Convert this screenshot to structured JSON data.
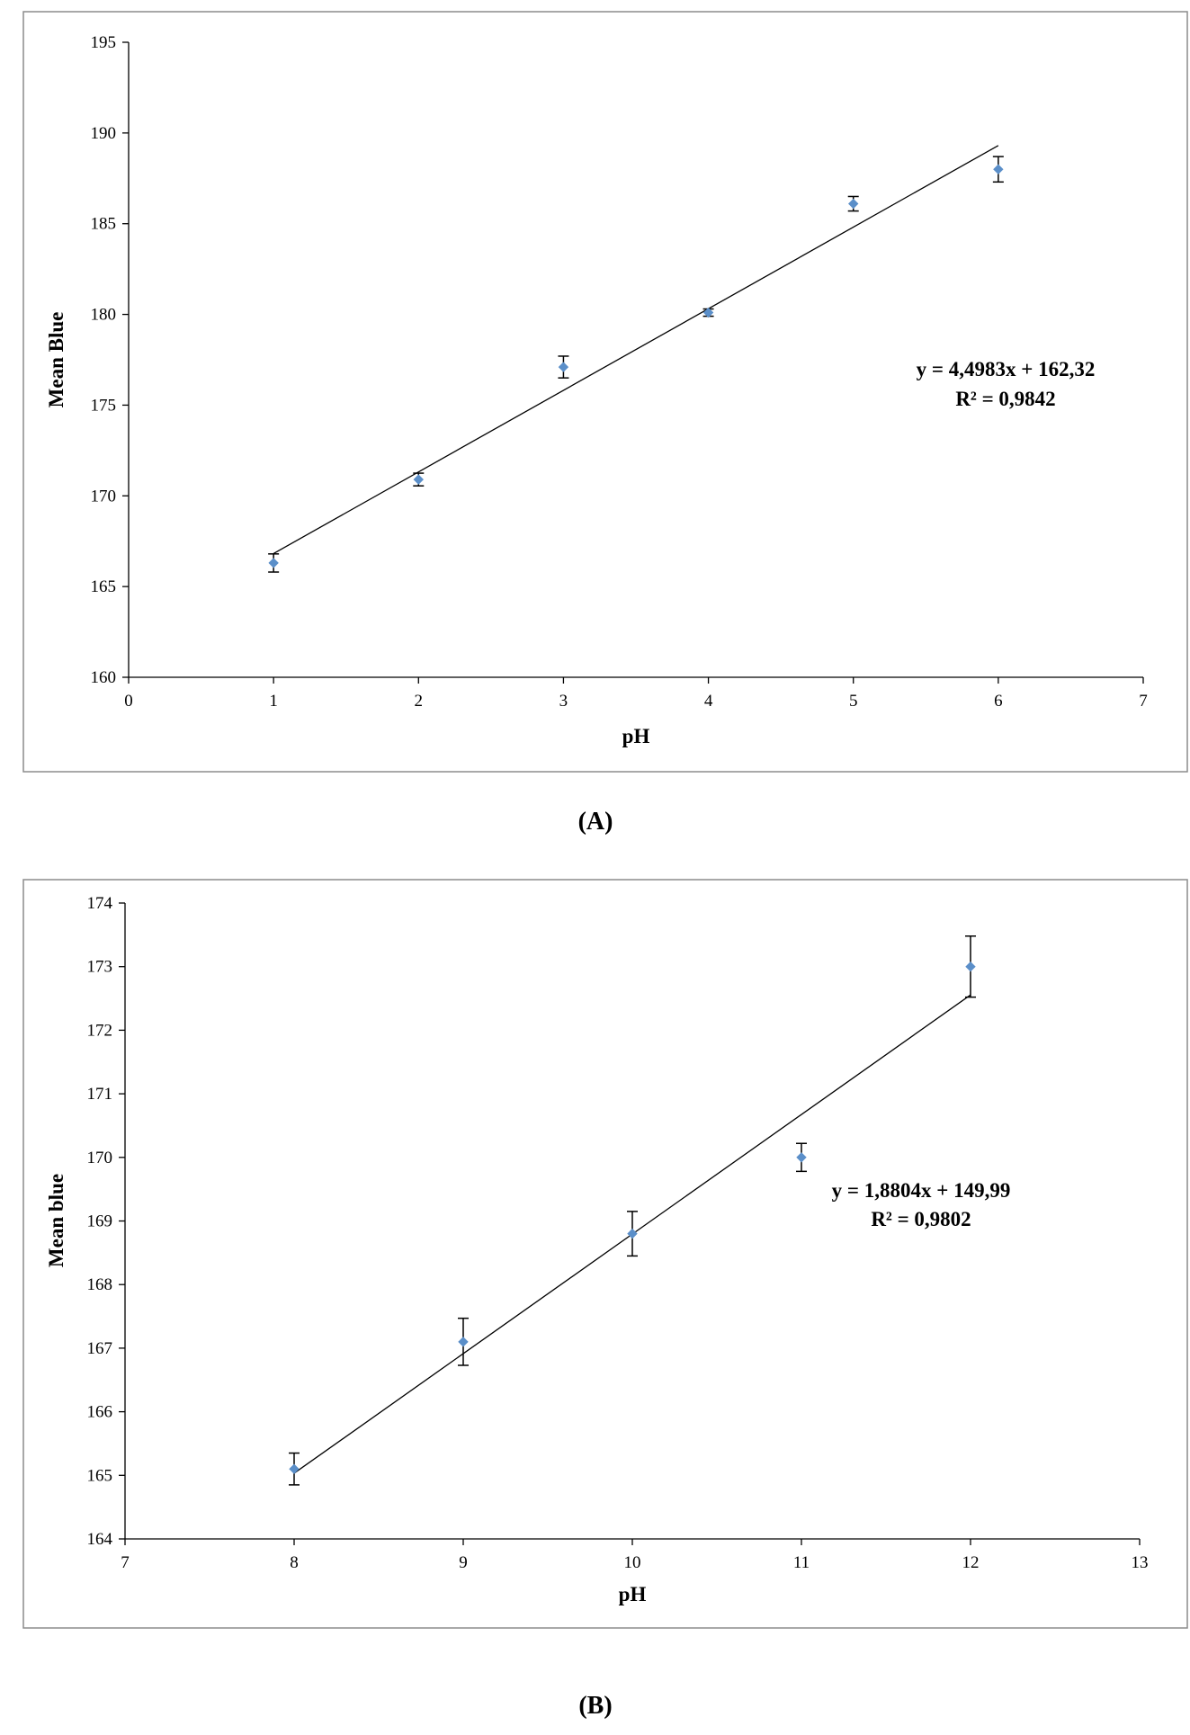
{
  "chart_data": [
    {
      "type": "scatter",
      "panel_label": "(A)",
      "xlabel": "pH",
      "ylabel": "Mean Blue",
      "xlim": [
        0,
        7
      ],
      "ylim": [
        160,
        195
      ],
      "xticks": [
        0,
        1,
        2,
        3,
        4,
        5,
        6,
        7
      ],
      "yticks": [
        160,
        165,
        170,
        175,
        180,
        185,
        190,
        195
      ],
      "x": [
        1,
        2,
        3,
        4,
        5,
        6
      ],
      "y": [
        166.3,
        170.9,
        177.1,
        180.1,
        186.1,
        188.0
      ],
      "error": [
        0.5,
        0.35,
        0.6,
        0.2,
        0.4,
        0.7
      ],
      "trendline": {
        "slope": 4.4983,
        "intercept": 162.32,
        "x_range": [
          1,
          6
        ]
      },
      "equation": "y = 4,4983x + 162,32",
      "r_squared": "R² = 0,9842",
      "grid": false,
      "marker_color": "#5b8fc9"
    },
    {
      "type": "scatter",
      "panel_label": "(B)",
      "xlabel": "pH",
      "ylabel": "Mean blue",
      "xlim": [
        7,
        13
      ],
      "ylim": [
        164,
        174
      ],
      "xticks": [
        7,
        8,
        9,
        10,
        11,
        12,
        13
      ],
      "yticks": [
        164,
        165,
        166,
        167,
        168,
        169,
        170,
        171,
        172,
        173,
        174
      ],
      "x": [
        8,
        9,
        10,
        11,
        12
      ],
      "y": [
        165.1,
        167.1,
        168.8,
        170.0,
        173.0
      ],
      "error": [
        0.25,
        0.37,
        0.35,
        0.22,
        0.48
      ],
      "trendline": {
        "slope": 1.8804,
        "intercept": 149.99,
        "x_range": [
          8,
          12
        ]
      },
      "equation": "y = 1,8804x + 149,99",
      "r_squared": "R² = 0,9802",
      "grid": false,
      "marker_color": "#5b8fc9"
    }
  ]
}
